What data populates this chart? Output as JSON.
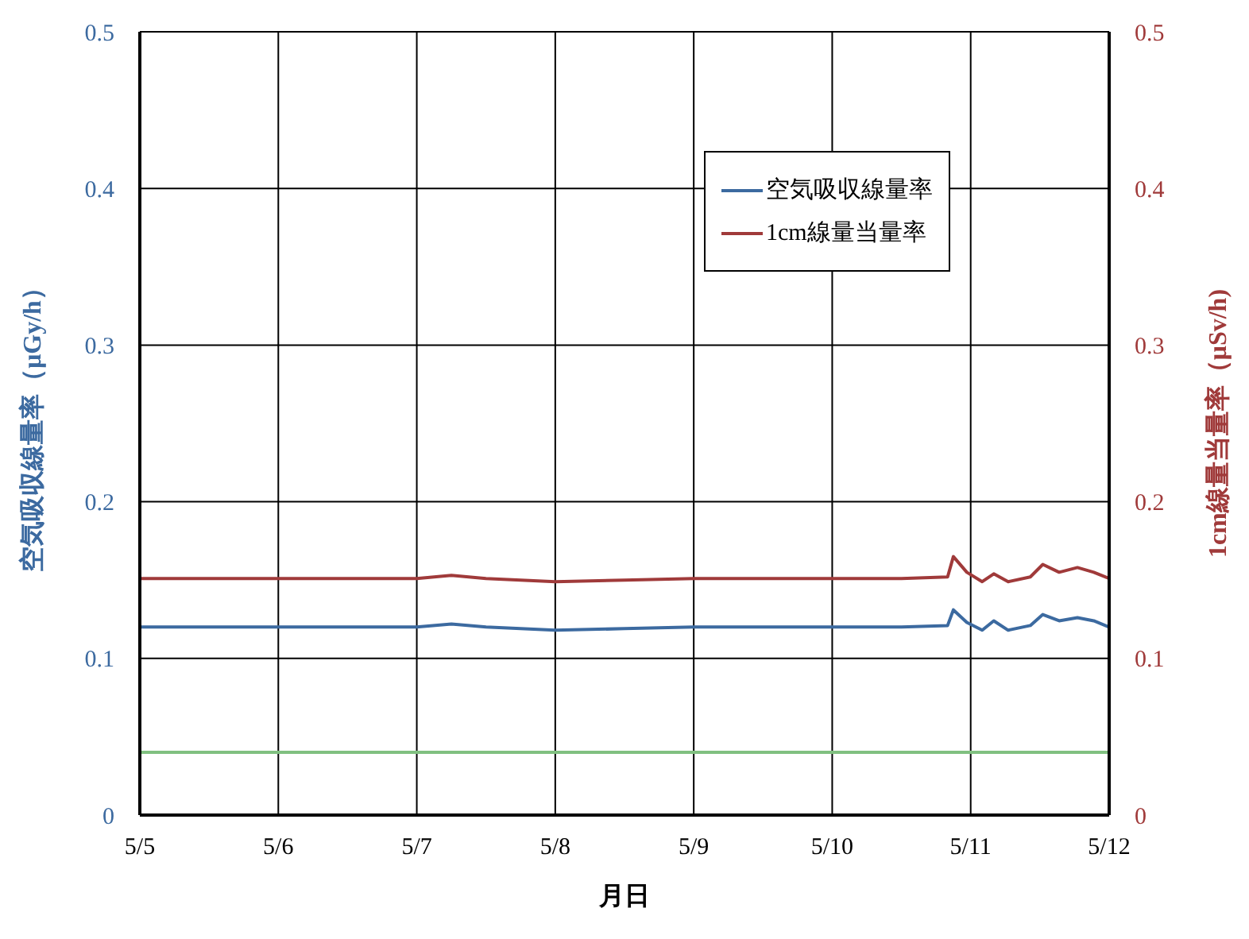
{
  "chart_data": {
    "type": "line",
    "xlabel": "月日",
    "ylabel": "空気吸収線量率（μGy/h）",
    "y2label": "1cm線量当量率（μSv/h)",
    "x": [
      "--05-05T00:00",
      "--05-05T12:00",
      "--05-06T00:00",
      "--05-06T12:00",
      "--05-07T00:00",
      "--05-07T06:00",
      "--05-07T12:00",
      "--05-07T18:00",
      "--05-08T00:00",
      "--05-08T12:00",
      "--05-09T00:00",
      "--05-09T12:00",
      "--05-10T00:00",
      "--05-10T12:00",
      "--05-10T20:00",
      "--05-10T21:00",
      "--05-10T23:20",
      "--05-11T02:00",
      "--05-11T04:00",
      "--05-11T06:30",
      "--05-11T10:20",
      "--05-11T12:30",
      "--05-11T15:20",
      "--05-11T18:30",
      "--05-11T21:20",
      "--05-12T00:00"
    ],
    "series": [
      {
        "name": "空気吸収線量率",
        "color": "#3c6aa0",
        "values": [
          0.12,
          0.12,
          0.12,
          0.12,
          0.12,
          0.122,
          0.12,
          0.119,
          0.118,
          0.119,
          0.12,
          0.12,
          0.12,
          0.12,
          0.121,
          0.131,
          0.123,
          0.118,
          0.124,
          0.118,
          0.121,
          0.128,
          0.124,
          0.126,
          0.124,
          0.12
        ]
      },
      {
        "name": "1cm線量当量率",
        "color": "#a03a3a",
        "axis": "y2",
        "values": [
          0.151,
          0.151,
          0.151,
          0.151,
          0.151,
          0.153,
          0.151,
          0.15,
          0.149,
          0.15,
          0.151,
          0.151,
          0.151,
          0.151,
          0.152,
          0.165,
          0.155,
          0.149,
          0.154,
          0.149,
          0.152,
          0.16,
          0.155,
          0.158,
          0.155,
          0.151
        ]
      }
    ],
    "xlim": [
      "--05-05",
      "--05-12"
    ],
    "xticks": [
      {
        "value": "--05-05",
        "label": "5/5"
      },
      {
        "value": "--05-06",
        "label": "5/6"
      },
      {
        "value": "--05-07",
        "label": "5/7"
      },
      {
        "value": "--05-08",
        "label": "5/8"
      },
      {
        "value": "--05-09",
        "label": "5/9"
      },
      {
        "value": "--05-10",
        "label": "5/10"
      },
      {
        "value": "--05-11",
        "label": "5/11"
      },
      {
        "value": "--05-12",
        "label": "5/12"
      }
    ],
    "ylim": [
      0,
      0.5
    ],
    "yticks": [
      0,
      0.1,
      0.2,
      0.3,
      0.4,
      0.5
    ],
    "y2lim": [
      0,
      0.5
    ],
    "y2ticks": [
      0,
      0.1,
      0.2,
      0.3,
      0.4,
      0.5
    ],
    "ref_lines": [
      {
        "axis": "y",
        "value": 0.04,
        "label": null,
        "color": "#80c080"
      }
    ],
    "grid": true,
    "legend": "top right",
    "line_style": "solid"
  }
}
